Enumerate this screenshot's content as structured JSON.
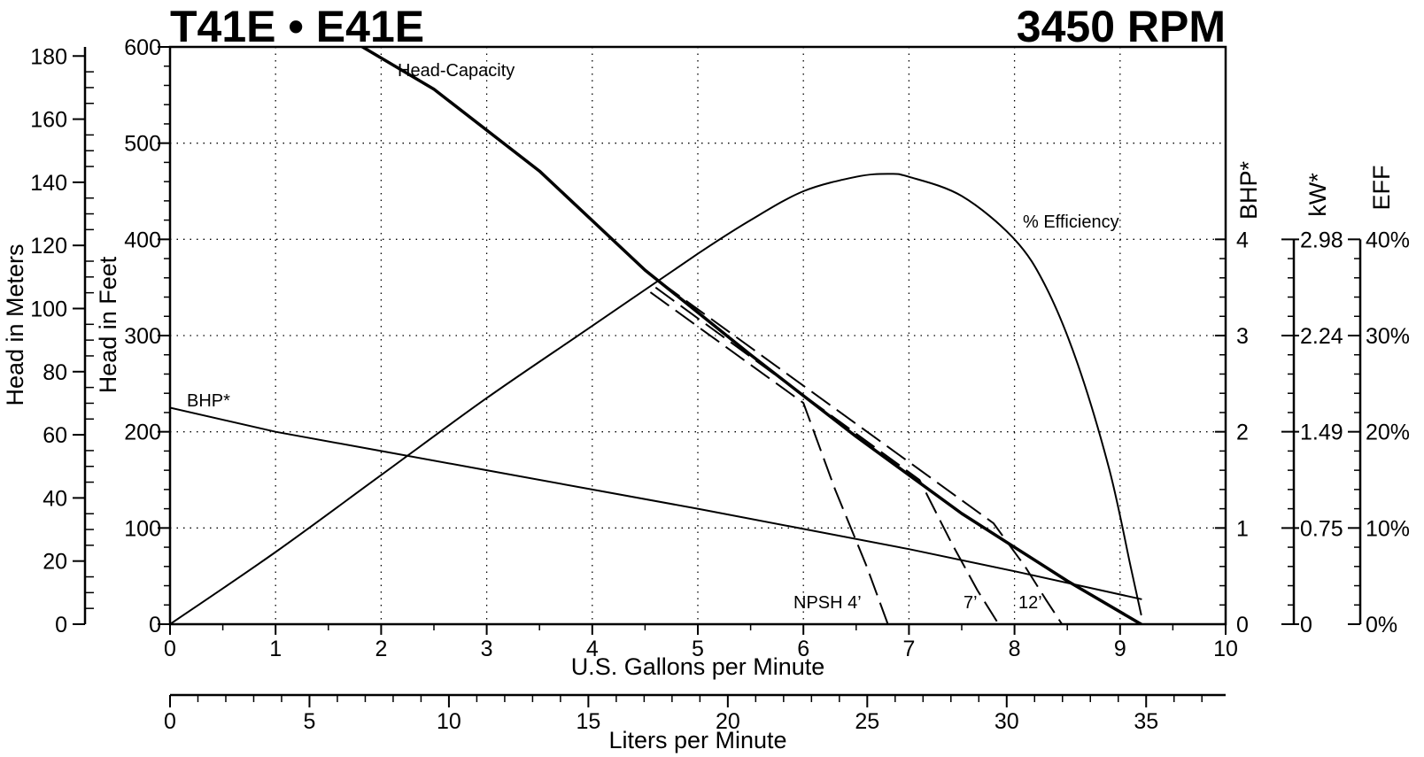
{
  "chart_data": {
    "type": "line",
    "title_left": "T41E • E41E",
    "title_right": "3450 RPM",
    "grid": true,
    "x_axis": {
      "label": "U.S. Gallons per Minute",
      "range": [
        0,
        10
      ],
      "ticks": [
        "0",
        "1",
        "2",
        "3",
        "4",
        "5",
        "6",
        "7",
        "8",
        "9",
        "10"
      ]
    },
    "x2_axis": {
      "label": "Liters per Minute",
      "range": [
        0,
        37.85
      ],
      "ticks": [
        "0",
        "5",
        "10",
        "15",
        "20",
        "25",
        "30",
        "35"
      ]
    },
    "y_axis": {
      "label": "Head in Feet",
      "range": [
        0,
        600
      ],
      "ticks": [
        "0",
        "100",
        "200",
        "300",
        "400",
        "500",
        "600"
      ]
    },
    "y_meters_axis": {
      "label": "Head in Meters",
      "range": [
        0,
        182.88
      ],
      "ticks": [
        "0",
        "20",
        "40",
        "60",
        "80",
        "100",
        "120",
        "140",
        "160",
        "180"
      ]
    },
    "bhp_axis": {
      "label": "BHP*",
      "range": [
        0,
        4
      ],
      "ticks": [
        "0",
        "1",
        "2",
        "3",
        "4"
      ]
    },
    "kw_axis": {
      "label": "kW*",
      "ticks": [
        "0",
        "0.75",
        "1.49",
        "2.24",
        "2.98"
      ]
    },
    "eff_axis": {
      "label": "EFF",
      "range": [
        0,
        40
      ],
      "ticks": [
        "0%",
        "10%",
        "20%",
        "30%",
        "40%"
      ]
    },
    "series": [
      {
        "name": "Head-Capacity",
        "axis": "head_ft",
        "style": "solid-bold",
        "x": [
          1.7,
          2.5,
          3.5,
          4.5,
          5.5,
          6.5,
          7.5,
          8.5,
          9.2
        ],
        "y": [
          608,
          556,
          471,
          368,
          280,
          195,
          115,
          45,
          0
        ]
      },
      {
        "name": "% Efficiency",
        "axis": "eff",
        "style": "solid",
        "x": [
          0,
          1,
          2,
          3,
          4,
          5,
          5.5,
          6,
          6.5,
          6.8,
          7,
          7.5,
          8,
          8.3,
          8.6,
          8.9,
          9.1,
          9.2
        ],
        "y": [
          0,
          7.5,
          15.5,
          23.5,
          31,
          38.5,
          42,
          45,
          46.5,
          46.8,
          46.5,
          44.5,
          40,
          35,
          27,
          16,
          6,
          1
        ]
      },
      {
        "name": "BHP*",
        "axis": "bhp",
        "style": "solid",
        "x": [
          0,
          1,
          2,
          3,
          4,
          5,
          6,
          7,
          8,
          9.2
        ],
        "y": [
          2.25,
          2.0,
          1.8,
          1.6,
          1.4,
          1.2,
          0.99,
          0.78,
          0.55,
          0.26
        ]
      },
      {
        "name": "NPSH 4'",
        "axis": "head_ft",
        "style": "dashed",
        "x": [
          4.55,
          6.0,
          6.3,
          6.6,
          6.8
        ],
        "y": [
          345,
          230,
          140,
          60,
          0
        ]
      },
      {
        "name": "7'",
        "axis": "head_ft",
        "style": "dashed",
        "x": [
          4.6,
          7.1,
          7.4,
          7.65,
          7.85
        ],
        "y": [
          350,
          150,
          85,
          35,
          0
        ]
      },
      {
        "name": "12'",
        "axis": "head_ft",
        "style": "dashed",
        "x": [
          4.65,
          7.8,
          8.1,
          8.3,
          8.45
        ],
        "y": [
          355,
          105,
          60,
          25,
          0
        ]
      }
    ],
    "annotations": {
      "head_capacity": "Head-Capacity",
      "efficiency": "% Efficiency",
      "bhp": "BHP*",
      "npsh4": "NPSH 4’",
      "npsh7": "7’",
      "npsh12": "12’"
    }
  }
}
